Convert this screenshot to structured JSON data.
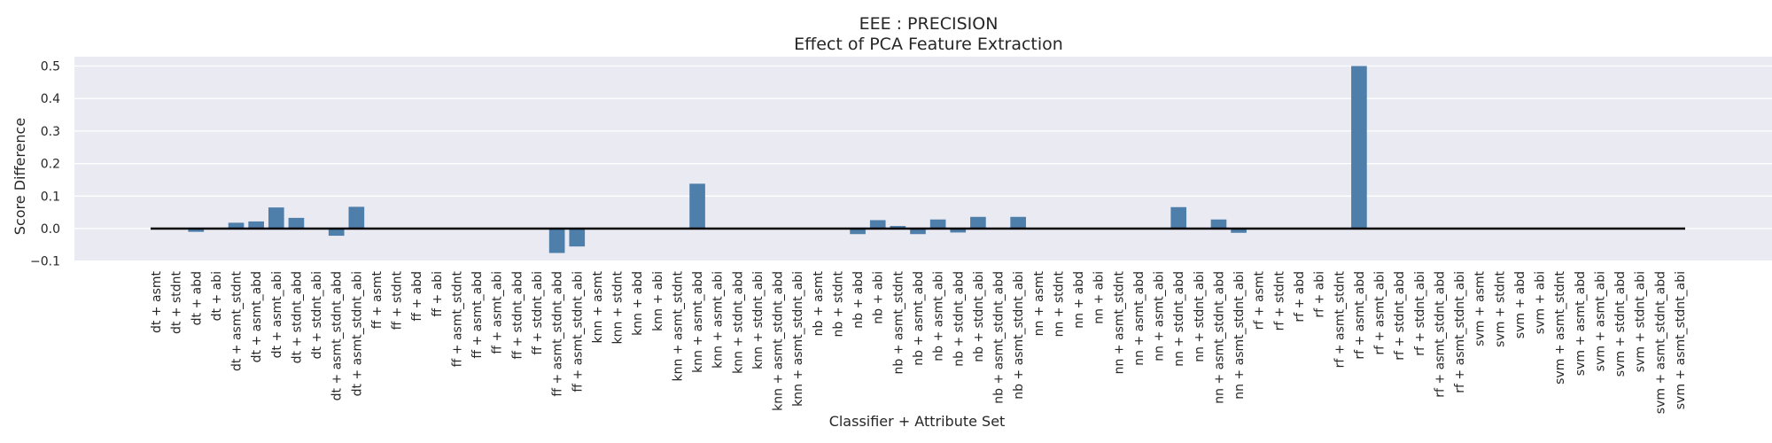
{
  "chart_data": {
    "type": "bar",
    "title": "EEE : PRECISION",
    "subtitle": "Effect of PCA Feature Extraction",
    "xlabel": "Classifier + Attribute Set",
    "ylabel": "Score Difference",
    "ylim": [
      -0.1,
      0.52
    ],
    "yticks": [
      -0.1,
      0.0,
      0.1,
      0.2,
      0.3,
      0.4,
      0.5
    ],
    "ytick_labels": [
      "−0.1",
      "0.0",
      "0.1",
      "0.2",
      "0.3",
      "0.4",
      "0.5"
    ],
    "grid": true,
    "bar_color": "#4e7faa",
    "background_color": "#eaeaf2",
    "baseline_color": "#000000",
    "categories": [
      "dt + asmt",
      "dt + stdnt",
      "dt + abd",
      "dt + abi",
      "dt + asmt_stdnt",
      "dt + asmt_abd",
      "dt + asmt_abi",
      "dt + stdnt_abd",
      "dt + stdnt_abi",
      "dt + asmt_stdnt_abd",
      "dt + asmt_stdnt_abi",
      "ff + asmt",
      "ff + stdnt",
      "ff + abd",
      "ff + abi",
      "ff + asmt_stdnt",
      "ff + asmt_abd",
      "ff + asmt_abi",
      "ff + stdnt_abd",
      "ff + stdnt_abi",
      "ff + asmt_stdnt_abd",
      "ff + asmt_stdnt_abi",
      "knn + asmt",
      "knn + stdnt",
      "knn + abd",
      "knn + abi",
      "knn + asmt_stdnt",
      "knn + asmt_abd",
      "knn + asmt_abi",
      "knn + stdnt_abd",
      "knn + stdnt_abi",
      "knn + asmt_stdnt_abd",
      "knn + asmt_stdnt_abi",
      "nb + asmt",
      "nb + stdnt",
      "nb + abd",
      "nb + abi",
      "nb + asmt_stdnt",
      "nb + asmt_abd",
      "nb + asmt_abi",
      "nb + stdnt_abd",
      "nb + stdnt_abi",
      "nb + asmt_stdnt_abd",
      "nb + asmt_stdnt_abi",
      "nn + asmt",
      "nn + stdnt",
      "nn + abd",
      "nn + abi",
      "nn + asmt_stdnt",
      "nn + asmt_abd",
      "nn + asmt_abi",
      "nn + stdnt_abd",
      "nn + stdnt_abi",
      "nn + asmt_stdnt_abd",
      "nn + asmt_stdnt_abi",
      "rf + asmt",
      "rf + stdnt",
      "rf + abd",
      "rf + abi",
      "rf + asmt_stdnt",
      "rf + asmt_abd",
      "rf + asmt_abi",
      "rf + stdnt_abd",
      "rf + stdnt_abi",
      "rf + asmt_stdnt_abd",
      "rf + asmt_stdnt_abi",
      "svm + asmt",
      "svm + stdnt",
      "svm + abd",
      "svm + abi",
      "svm + asmt_stdnt",
      "svm + asmt_abd",
      "svm + asmt_abi",
      "svm + stdnt_abd",
      "svm + stdnt_abi",
      "svm + asmt_stdnt_abd",
      "svm + asmt_stdnt_abi"
    ],
    "values": [
      0.0,
      0.0,
      -0.01,
      0.0,
      0.018,
      0.022,
      0.065,
      0.033,
      0.0,
      -0.022,
      0.067,
      0.0,
      0.0,
      0.0,
      0.0,
      0.0,
      0.0,
      0.0,
      0.0,
      0.0,
      -0.075,
      -0.055,
      0.0,
      0.0,
      0.0,
      0.0,
      0.0,
      0.138,
      0.0,
      0.0,
      0.0,
      0.0,
      0.0,
      0.0,
      0.0,
      -0.017,
      0.026,
      0.008,
      -0.017,
      0.028,
      -0.012,
      0.036,
      0.0,
      0.036,
      0.0,
      0.0,
      0.0,
      0.0,
      0.0,
      0.0,
      0.0,
      0.066,
      0.0,
      0.028,
      -0.013,
      0.0,
      0.0,
      0.0,
      0.0,
      0.0,
      0.5,
      0.0,
      0.0,
      0.0,
      0.0,
      0.0,
      0.0,
      0.0,
      0.0,
      0.0,
      0.0,
      0.0,
      0.0,
      0.0,
      0.0,
      0.0,
      0.0
    ]
  }
}
